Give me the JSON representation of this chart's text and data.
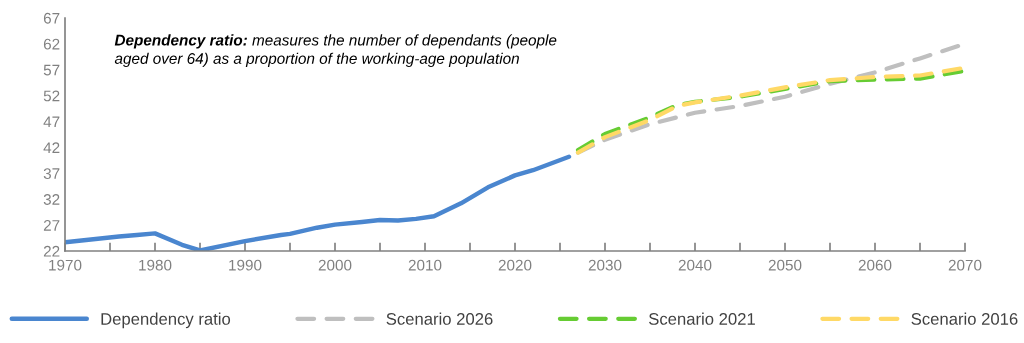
{
  "chart_data": {
    "type": "line",
    "annotations": [
      "Dependency ratio: measures the number of dependants (people\naged over 64) as a proportion of the working-age population"
    ],
    "series": [
      {
        "name": "Dependency ratio",
        "color": "#4a86cf",
        "line_style": "solid",
        "x": [
          1970,
          1976,
          1978,
          1980,
          1983,
          1985,
          1990,
          1994,
          1995,
          1998,
          2000,
          2003,
          2005,
          2007,
          2009,
          2011,
          2014,
          2017,
          2020,
          2022,
          2026
        ],
        "values": [
          23.7,
          24.8,
          25.1,
          25.4,
          23.2,
          22.1,
          23.9,
          25.1,
          25.3,
          26.5,
          27.1,
          27.6,
          28.0,
          27.9,
          28.2,
          28.7,
          31.2,
          34.3,
          36.6,
          37.6,
          40.2
        ]
      },
      {
        "name": "Scenario 2026",
        "color": "#bfbfbf",
        "line_style": "dashed",
        "x": [
          2027,
          2030,
          2035,
          2040,
          2045,
          2050,
          2055,
          2060,
          2065,
          2070
        ],
        "values": [
          41.0,
          43.5,
          46.5,
          48.7,
          50.0,
          51.8,
          54.3,
          56.5,
          59.2,
          62.0
        ]
      },
      {
        "name": "Scenario 2021",
        "color": "#66cc33",
        "line_style": "dashed",
        "x": [
          2027,
          2030,
          2035,
          2038,
          2040,
          2045,
          2050,
          2055,
          2060,
          2065,
          2070
        ],
        "values": [
          41.5,
          44.6,
          47.8,
          50.2,
          50.8,
          51.8,
          53.3,
          54.8,
          55.1,
          55.3,
          56.8
        ]
      },
      {
        "name": "Scenario 2016",
        "color": "#ffd966",
        "line_style": "dashed",
        "x": [
          2027,
          2030,
          2035,
          2038,
          2040,
          2045,
          2050,
          2055,
          2060,
          2065,
          2070
        ],
        "values": [
          41.0,
          44.0,
          47.3,
          50.0,
          50.7,
          52.0,
          53.6,
          55.0,
          55.6,
          55.9,
          57.4
        ]
      }
    ],
    "xlim": [
      1970,
      2070
    ],
    "xticks": [
      1970,
      {
        "value": 1975,
        "label": null
      },
      1980,
      {
        "value": 1985,
        "label": null
      },
      1990,
      {
        "value": 1995,
        "label": null
      },
      2000,
      {
        "value": 2005,
        "label": null
      },
      2010,
      {
        "value": 2015,
        "label": null
      },
      2020,
      {
        "value": 2025,
        "label": null
      },
      2030,
      {
        "value": 2035,
        "label": null
      },
      2040,
      {
        "value": 2045,
        "label": null
      },
      2050,
      {
        "value": 2055,
        "label": null
      },
      2060,
      {
        "value": 2065,
        "label": null
      },
      2070
    ],
    "ylim": [
      22,
      67
    ],
    "yticks": [
      22,
      27,
      32,
      37,
      42,
      47,
      52,
      57,
      62,
      67
    ],
    "grid": false,
    "legend": "bottom",
    "marker": "none"
  }
}
